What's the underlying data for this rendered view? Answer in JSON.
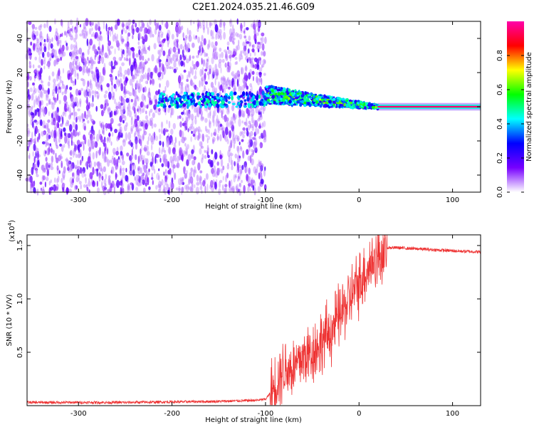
{
  "title": "C2E1.2024.035.21.46.G09",
  "chart_data": [
    {
      "type": "heatmap",
      "xlabel": "Height of straight line (km)",
      "ylabel": "Frequency (Hz)",
      "xlim": [
        -355,
        130
      ],
      "ylim": [
        -50,
        50
      ],
      "xticks": [
        -300,
        -200,
        -100,
        0,
        100
      ],
      "yticks": [
        -40,
        -20,
        0,
        20,
        40
      ],
      "grid": false,
      "colorbar": {
        "label": "Normalized spectral amplitude",
        "range": [
          0,
          1
        ],
        "ticks": [
          0.0,
          0.2,
          0.4,
          0.6,
          0.8
        ],
        "colors": [
          "#ffffff",
          "#7700ff",
          "#0000ff",
          "#00ffff",
          "#00ff00",
          "#ffff00",
          "#ff0000",
          "#ff00aa"
        ]
      },
      "regions": [
        {
          "x": [
            -355,
            -100
          ],
          "freq_range": [
            -50,
            50
          ],
          "amplitude": [
            0.02,
            0.2
          ]
        },
        {
          "x": [
            -100,
            20
          ],
          "freq_center_start": 7,
          "freq_center_end": 0,
          "amplitude": [
            0.2,
            0.75
          ]
        },
        {
          "x": [
            20,
            130
          ],
          "freq_center": 0,
          "amplitude": 0.95
        }
      ]
    },
    {
      "type": "line",
      "xlabel": "Height of straight line (km)",
      "ylabel": "SNR (10 * V/V)",
      "yscale_label": "(x10",
      "yscale_exp": "4",
      "yscale_close": ")",
      "xlim": [
        -355,
        130
      ],
      "ylim": [
        0,
        1.6
      ],
      "xticks": [
        -300,
        -200,
        -100,
        0,
        100
      ],
      "yticks": [
        0.5,
        1.0,
        1.5
      ],
      "ytick_labels": [
        "0.5",
        "1.0",
        "1.5"
      ],
      "grid": false,
      "color": "#ee3333",
      "series": [
        {
          "x": [
            -355,
            -300,
            -250,
            -200,
            -150,
            -110,
            -100,
            -92,
            -85,
            -80,
            -70,
            -60,
            -50,
            -40,
            -30,
            -20,
            -10,
            0,
            10,
            20,
            30,
            40,
            60,
            80,
            100,
            130
          ],
          "y": [
            0.03,
            0.03,
            0.03,
            0.035,
            0.04,
            0.05,
            0.06,
            0.15,
            0.3,
            0.35,
            0.35,
            0.45,
            0.5,
            0.6,
            0.7,
            0.85,
            1.0,
            1.15,
            1.3,
            1.4,
            1.48,
            1.48,
            1.47,
            1.46,
            1.45,
            1.44
          ]
        }
      ]
    }
  ]
}
